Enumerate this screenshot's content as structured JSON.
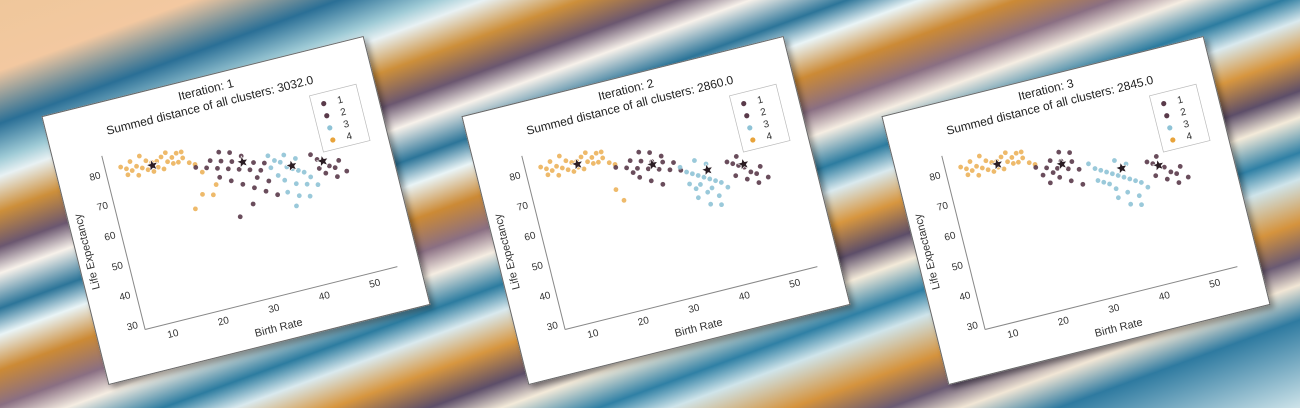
{
  "chart_data": [
    {
      "type": "scatter",
      "title_line1": "Iteration: 1",
      "title_line2": "Summed distance of all clusters: 3032.0",
      "xlabel": "Birth Rate",
      "ylabel": "Life Expectancy",
      "xlim": [
        5,
        55
      ],
      "ylim": [
        28,
        86
      ],
      "xticks": [
        10,
        20,
        30,
        40,
        50
      ],
      "yticks": [
        30,
        40,
        50,
        60,
        70,
        80
      ],
      "legend": [
        "1",
        "2",
        "3",
        "4"
      ],
      "legend_position": "top-right",
      "colors": {
        "1": "#5a3a4a",
        "2": "#5a3a4a",
        "3": "#8fc3d6",
        "4": "#e8a33a"
      },
      "centroids": [
        {
          "cluster": "4",
          "x": 14,
          "y": 79
        },
        {
          "cluster": "1",
          "x": 31,
          "y": 73
        },
        {
          "cluster": "3",
          "x": 40,
          "y": 68
        },
        {
          "cluster": "2",
          "x": 46,
          "y": 67
        }
      ],
      "points": {
        "4": [
          [
            8,
            81
          ],
          [
            9,
            80
          ],
          [
            10,
            82
          ],
          [
            11,
            80
          ],
          [
            12,
            79
          ],
          [
            13,
            81
          ],
          [
            14,
            80
          ],
          [
            15,
            78
          ],
          [
            16,
            81
          ],
          [
            17,
            79
          ],
          [
            18,
            80
          ],
          [
            19,
            78
          ],
          [
            20,
            79
          ],
          [
            21,
            77
          ],
          [
            9,
            78
          ],
          [
            11,
            77
          ],
          [
            13,
            78
          ],
          [
            15,
            80
          ],
          [
            17,
            82
          ],
          [
            19,
            81
          ],
          [
            12,
            83
          ],
          [
            16,
            77
          ],
          [
            20,
            81
          ],
          [
            22,
            76
          ],
          [
            10,
            79
          ],
          [
            14,
            77
          ],
          [
            18,
            78
          ],
          [
            23,
            73
          ],
          [
            25,
            68
          ],
          [
            22,
            66
          ],
          [
            20,
            62
          ],
          [
            24,
            65
          ]
        ],
        "1": [
          [
            22,
            75
          ],
          [
            24,
            74
          ],
          [
            25,
            76
          ],
          [
            26,
            73
          ],
          [
            27,
            75
          ],
          [
            28,
            72
          ],
          [
            29,
            74
          ],
          [
            30,
            71
          ],
          [
            31,
            73
          ],
          [
            32,
            70
          ],
          [
            33,
            72
          ],
          [
            34,
            69
          ],
          [
            35,
            71
          ],
          [
            26,
            70
          ],
          [
            28,
            68
          ],
          [
            30,
            66
          ],
          [
            32,
            64
          ],
          [
            34,
            62
          ],
          [
            29,
            77
          ],
          [
            31,
            75
          ],
          [
            27,
            78
          ],
          [
            33,
            67
          ],
          [
            36,
            60
          ],
          [
            35,
            65
          ],
          [
            31,
            59
          ],
          [
            28,
            56
          ]
        ],
        "3": [
          [
            36,
            73
          ],
          [
            37,
            71
          ],
          [
            38,
            70
          ],
          [
            39,
            68
          ],
          [
            40,
            67
          ],
          [
            41,
            66
          ],
          [
            42,
            65
          ],
          [
            38,
            64
          ],
          [
            40,
            62
          ],
          [
            42,
            61
          ],
          [
            37,
            66
          ],
          [
            39,
            72
          ],
          [
            41,
            70
          ],
          [
            43,
            63
          ],
          [
            36,
            69
          ],
          [
            40,
            58
          ],
          [
            42,
            57
          ],
          [
            38,
            60
          ],
          [
            44,
            60
          ],
          [
            39,
            55
          ]
        ],
        "2": [
          [
            44,
            70
          ],
          [
            45,
            68
          ],
          [
            46,
            67
          ],
          [
            47,
            65
          ],
          [
            48,
            64
          ],
          [
            49,
            66
          ],
          [
            46,
            63
          ],
          [
            48,
            61
          ],
          [
            45,
            65
          ],
          [
            50,
            62
          ]
        ]
      }
    },
    {
      "type": "scatter",
      "title_line1": "Iteration: 2",
      "title_line2": "Summed distance of all clusters: 2860.0",
      "xlabel": "Birth Rate",
      "ylabel": "Life Expectancy",
      "xlim": [
        5,
        55
      ],
      "ylim": [
        28,
        86
      ],
      "xticks": [
        10,
        20,
        30,
        40,
        50
      ],
      "yticks": [
        30,
        40,
        50,
        60,
        70,
        80
      ],
      "legend": [
        "1",
        "2",
        "3",
        "4"
      ],
      "legend_position": "top-right",
      "colors": {
        "1": "#5a3a4a",
        "2": "#5a3a4a",
        "3": "#8fc3d6",
        "4": "#e8a33a"
      },
      "centroids": [
        {
          "cluster": "4",
          "x": 15,
          "y": 79
        },
        {
          "cluster": "1",
          "x": 29,
          "y": 73
        },
        {
          "cluster": "3",
          "x": 39,
          "y": 67
        },
        {
          "cluster": "2",
          "x": 46,
          "y": 66
        }
      ],
      "points": {
        "4": [
          [
            8,
            81
          ],
          [
            9,
            80
          ],
          [
            10,
            82
          ],
          [
            11,
            80
          ],
          [
            12,
            79
          ],
          [
            13,
            81
          ],
          [
            14,
            80
          ],
          [
            15,
            78
          ],
          [
            16,
            81
          ],
          [
            17,
            79
          ],
          [
            18,
            80
          ],
          [
            19,
            78
          ],
          [
            20,
            79
          ],
          [
            21,
            77
          ],
          [
            9,
            78
          ],
          [
            11,
            77
          ],
          [
            13,
            78
          ],
          [
            15,
            80
          ],
          [
            17,
            82
          ],
          [
            19,
            81
          ],
          [
            12,
            83
          ],
          [
            16,
            77
          ],
          [
            20,
            81
          ],
          [
            22,
            76
          ],
          [
            10,
            79
          ],
          [
            14,
            77
          ],
          [
            18,
            78
          ],
          [
            21,
            68
          ],
          [
            22,
            64
          ]
        ],
        "1": [
          [
            22,
            75
          ],
          [
            24,
            74
          ],
          [
            25,
            76
          ],
          [
            26,
            73
          ],
          [
            27,
            75
          ],
          [
            28,
            72
          ],
          [
            29,
            74
          ],
          [
            30,
            71
          ],
          [
            31,
            73
          ],
          [
            32,
            70
          ],
          [
            26,
            70
          ],
          [
            28,
            68
          ],
          [
            30,
            66
          ],
          [
            29,
            77
          ],
          [
            31,
            75
          ],
          [
            27,
            78
          ],
          [
            33,
            72
          ],
          [
            25,
            72
          ],
          [
            34,
            69
          ]
        ],
        "3": [
          [
            34,
            70
          ],
          [
            35,
            68
          ],
          [
            36,
            67
          ],
          [
            37,
            66
          ],
          [
            38,
            65
          ],
          [
            39,
            64
          ],
          [
            40,
            63
          ],
          [
            36,
            62
          ],
          [
            38,
            60
          ],
          [
            40,
            58
          ],
          [
            35,
            64
          ],
          [
            37,
            71
          ],
          [
            39,
            69
          ],
          [
            41,
            62
          ],
          [
            36,
            59
          ],
          [
            38,
            56
          ],
          [
            40,
            55
          ],
          [
            42,
            60
          ],
          [
            37,
            63
          ],
          [
            39,
            61
          ]
        ],
        "2": [
          [
            43,
            68
          ],
          [
            44,
            67
          ],
          [
            45,
            66
          ],
          [
            46,
            65
          ],
          [
            47,
            63
          ],
          [
            48,
            62
          ],
          [
            49,
            64
          ],
          [
            46,
            61
          ],
          [
            48,
            59
          ],
          [
            50,
            60
          ],
          [
            44,
            63
          ],
          [
            45,
            69
          ]
        ]
      }
    },
    {
      "type": "scatter",
      "title_line1": "Iteration: 3",
      "title_line2": "Summed distance of all clusters: 2845.0",
      "xlabel": "Birth Rate",
      "ylabel": "Life Expectancy",
      "xlim": [
        5,
        55
      ],
      "ylim": [
        28,
        86
      ],
      "xticks": [
        10,
        20,
        30,
        40,
        50
      ],
      "yticks": [
        30,
        40,
        50,
        60,
        70,
        80
      ],
      "legend": [
        "1",
        "2",
        "3",
        "4"
      ],
      "legend_position": "top-right",
      "colors": {
        "1": "#5a3a4a",
        "2": "#5a3a4a",
        "3": "#8fc3d6",
        "4": "#e8a33a"
      },
      "centroids": [
        {
          "cluster": "4",
          "x": 15,
          "y": 79
        },
        {
          "cluster": "1",
          "x": 27,
          "y": 74
        },
        {
          "cluster": "3",
          "x": 38,
          "y": 68
        },
        {
          "cluster": "2",
          "x": 45,
          "y": 66
        }
      ],
      "points": {
        "4": [
          [
            8,
            81
          ],
          [
            9,
            80
          ],
          [
            10,
            82
          ],
          [
            11,
            80
          ],
          [
            12,
            79
          ],
          [
            13,
            81
          ],
          [
            14,
            80
          ],
          [
            15,
            78
          ],
          [
            16,
            81
          ],
          [
            17,
            79
          ],
          [
            18,
            80
          ],
          [
            19,
            78
          ],
          [
            20,
            79
          ],
          [
            21,
            77
          ],
          [
            9,
            78
          ],
          [
            11,
            77
          ],
          [
            13,
            78
          ],
          [
            15,
            80
          ],
          [
            17,
            82
          ],
          [
            19,
            81
          ],
          [
            12,
            83
          ],
          [
            16,
            77
          ],
          [
            20,
            81
          ],
          [
            22,
            76
          ],
          [
            10,
            79
          ],
          [
            14,
            77
          ],
          [
            18,
            78
          ]
        ],
        "1": [
          [
            22,
            75
          ],
          [
            24,
            74
          ],
          [
            25,
            76
          ],
          [
            26,
            73
          ],
          [
            27,
            75
          ],
          [
            28,
            72
          ],
          [
            29,
            74
          ],
          [
            30,
            71
          ],
          [
            26,
            70
          ],
          [
            28,
            68
          ],
          [
            29,
            77
          ],
          [
            27,
            78
          ],
          [
            25,
            72
          ],
          [
            23,
            72
          ],
          [
            24,
            69
          ],
          [
            30,
            66
          ]
        ],
        "3": [
          [
            32,
            72
          ],
          [
            33,
            70
          ],
          [
            34,
            69
          ],
          [
            35,
            68
          ],
          [
            36,
            67
          ],
          [
            37,
            66
          ],
          [
            38,
            65
          ],
          [
            39,
            64
          ],
          [
            40,
            63
          ],
          [
            36,
            62
          ],
          [
            38,
            60
          ],
          [
            40,
            58
          ],
          [
            35,
            64
          ],
          [
            37,
            71
          ],
          [
            39,
            69
          ],
          [
            41,
            62
          ],
          [
            36,
            59
          ],
          [
            38,
            56
          ],
          [
            40,
            55
          ],
          [
            42,
            60
          ],
          [
            34,
            65
          ],
          [
            33,
            66
          ]
        ],
        "2": [
          [
            43,
            68
          ],
          [
            44,
            67
          ],
          [
            45,
            66
          ],
          [
            46,
            65
          ],
          [
            47,
            63
          ],
          [
            48,
            62
          ],
          [
            49,
            64
          ],
          [
            46,
            61
          ],
          [
            48,
            59
          ],
          [
            50,
            60
          ],
          [
            44,
            63
          ],
          [
            45,
            69
          ]
        ]
      }
    }
  ]
}
